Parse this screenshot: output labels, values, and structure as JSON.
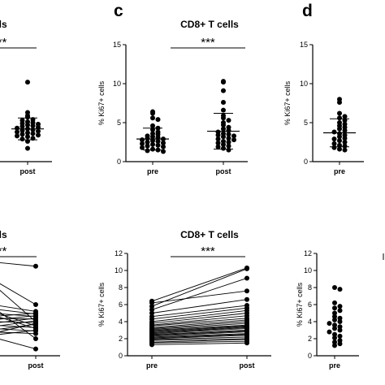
{
  "figure": {
    "panel_letters": [
      "c",
      "d"
    ]
  },
  "chart_data": [
    {
      "id": "b-scatter-partial",
      "type": "scatter",
      "title": "T cells",
      "significance": "**",
      "categories": [
        "post"
      ],
      "ylim": [
        0,
        15
      ],
      "series": [
        {
          "category": "post",
          "values": [
            10.2,
            6.3,
            5.9,
            5.7,
            5.4,
            5.3,
            5.1,
            5.0,
            4.9,
            4.8,
            4.7,
            4.6,
            4.5,
            4.4,
            4.3,
            4.2,
            4.1,
            4.0,
            3.9,
            3.8,
            3.7,
            3.6,
            3.5,
            3.4,
            3.3,
            3.2,
            3.0,
            2.9,
            2.6,
            1.7
          ],
          "mean": 4.2,
          "sd": 1.4
        }
      ]
    },
    {
      "id": "c-scatter",
      "type": "scatter",
      "title": "CD8+ T cells",
      "significance": "***",
      "ylabel": "% Ki67+ cells",
      "categories": [
        "pre",
        "post"
      ],
      "ylim": [
        0,
        15
      ],
      "yticks": [
        "0",
        "5",
        "10",
        "15"
      ],
      "series": [
        {
          "category": "pre",
          "values": [
            6.4,
            6.2,
            5.6,
            5.4,
            4.6,
            4.3,
            4.1,
            3.8,
            3.6,
            3.5,
            3.3,
            3.2,
            3.1,
            3.0,
            2.9,
            2.8,
            2.7,
            2.6,
            2.5,
            2.4,
            2.3,
            2.2,
            2.1,
            2.0,
            1.9,
            1.8,
            1.6,
            1.5,
            1.4,
            1.3
          ],
          "mean": 2.9,
          "sd": 1.4
        },
        {
          "category": "post",
          "values": [
            10.3,
            10.2,
            9.1,
            7.6,
            6.6,
            5.9,
            5.6,
            5.3,
            5.0,
            4.7,
            4.4,
            4.2,
            4.0,
            3.8,
            3.6,
            3.5,
            3.4,
            3.3,
            3.2,
            3.0,
            2.9,
            2.8,
            2.6,
            2.5,
            2.4,
            2.2,
            2.0,
            1.9,
            1.7,
            1.5
          ],
          "mean": 3.9,
          "sd": 2.3
        }
      ]
    },
    {
      "id": "d-scatter-partial",
      "type": "scatter",
      "ylabel": "% Ki67+ cells",
      "categories": [
        "pre"
      ],
      "ylim": [
        0,
        15
      ],
      "yticks": [
        "0",
        "5",
        "10",
        "15"
      ],
      "series": [
        {
          "category": "pre",
          "values": [
            8.0,
            7.6,
            6.2,
            5.8,
            5.6,
            5.3,
            5.0,
            4.8,
            4.6,
            4.4,
            4.2,
            4.0,
            3.8,
            3.6,
            3.4,
            3.2,
            3.0,
            2.9,
            2.7,
            2.5,
            2.3,
            2.1,
            2.0,
            1.8,
            1.6,
            1.5
          ],
          "mean": 3.7,
          "sd": 1.8
        }
      ]
    },
    {
      "id": "b-paired-partial",
      "type": "line",
      "title": "T cells",
      "significance": "**",
      "categories": [
        "post"
      ],
      "ylim": [
        0,
        12
      ],
      "pairs": [
        [
          11.0,
          10.5
        ],
        [
          9.0,
          6.0
        ],
        [
          8.5,
          4.0
        ],
        [
          6.0,
          5.2
        ],
        [
          5.8,
          2.0
        ],
        [
          5.5,
          4.9
        ],
        [
          5.2,
          3.5
        ],
        [
          5.0,
          4.6
        ],
        [
          4.8,
          3.2
        ],
        [
          4.6,
          5.0
        ],
        [
          4.4,
          4.3
        ],
        [
          4.2,
          4.7
        ],
        [
          4.0,
          3.9
        ],
        [
          3.8,
          4.4
        ],
        [
          3.6,
          3.3
        ],
        [
          3.4,
          4.1
        ],
        [
          3.2,
          2.9
        ],
        [
          3.0,
          3.7
        ],
        [
          2.8,
          2.6
        ],
        [
          2.6,
          3.8
        ],
        [
          2.4,
          3.0
        ],
        [
          2.2,
          0.8
        ]
      ]
    },
    {
      "id": "c-paired",
      "type": "line",
      "title": "CD8+ T cells",
      "significance": "***",
      "ylabel": "% Ki67+ cells",
      "categories": [
        "pre",
        "post"
      ],
      "ylim": [
        0,
        12
      ],
      "yticks": [
        "0",
        "2",
        "4",
        "6",
        "8",
        "10",
        "12"
      ],
      "pairs": [
        [
          6.4,
          10.3
        ],
        [
          6.2,
          7.6
        ],
        [
          5.8,
          10.2
        ],
        [
          5.4,
          9.1
        ],
        [
          5.0,
          6.6
        ],
        [
          4.6,
          5.9
        ],
        [
          4.3,
          5.6
        ],
        [
          4.0,
          5.3
        ],
        [
          3.8,
          5.0
        ],
        [
          3.6,
          4.7
        ],
        [
          3.5,
          4.4
        ],
        [
          3.3,
          4.2
        ],
        [
          3.2,
          4.0
        ],
        [
          3.1,
          3.8
        ],
        [
          3.0,
          3.6
        ],
        [
          2.9,
          3.5
        ],
        [
          2.8,
          3.4
        ],
        [
          2.7,
          3.3
        ],
        [
          2.6,
          3.2
        ],
        [
          2.5,
          3.0
        ],
        [
          2.4,
          2.9
        ],
        [
          2.3,
          2.8
        ],
        [
          2.2,
          2.6
        ],
        [
          2.1,
          2.5
        ],
        [
          2.0,
          2.4
        ],
        [
          1.9,
          2.2
        ],
        [
          1.8,
          2.0
        ],
        [
          1.6,
          1.9
        ],
        [
          1.5,
          1.7
        ],
        [
          1.3,
          1.5
        ]
      ]
    },
    {
      "id": "d-paired-partial",
      "type": "scatter",
      "ylabel": "% Ki67+ cells",
      "categories": [
        "pre"
      ],
      "ylim": [
        0,
        12
      ],
      "yticks": [
        "0",
        "2",
        "4",
        "6",
        "8",
        "10",
        "12"
      ],
      "series": [
        {
          "category": "pre",
          "values": [
            8.0,
            7.8,
            6.2,
            5.8,
            5.6,
            5.3,
            5.0,
            4.6,
            4.4,
            4.2,
            4.0,
            3.8,
            3.6,
            3.4,
            3.2,
            3.0,
            2.8,
            2.5,
            2.3,
            2.1,
            1.8,
            1.6,
            1.4,
            1.2
          ]
        }
      ],
      "extra_line_top": 12
    }
  ]
}
